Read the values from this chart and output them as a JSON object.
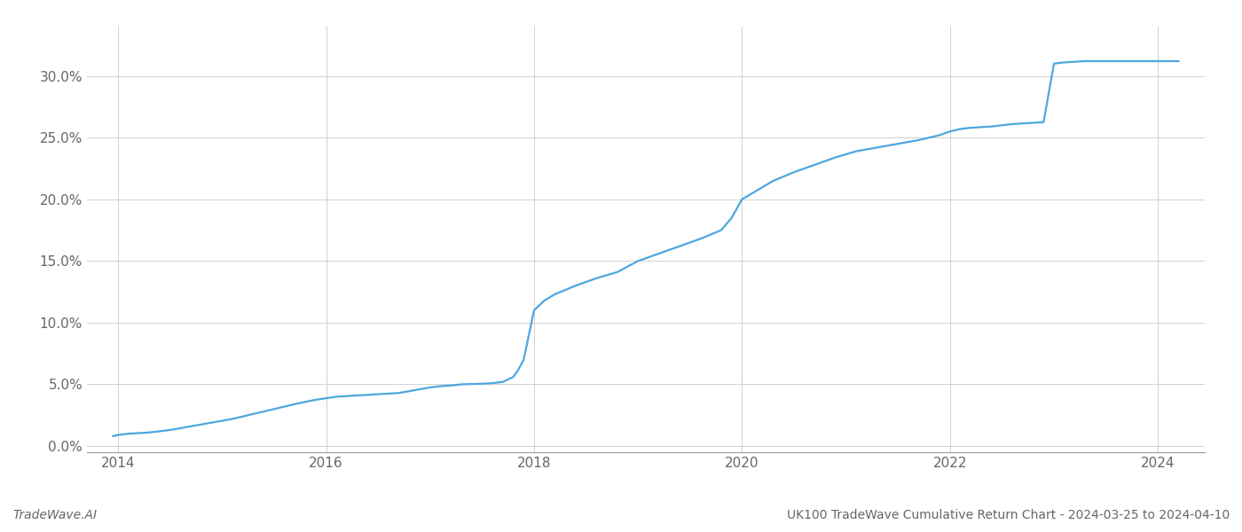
{
  "x_values": [
    2013.95,
    2014.0,
    2014.1,
    2014.2,
    2014.3,
    2014.5,
    2014.7,
    2014.9,
    2015.1,
    2015.3,
    2015.5,
    2015.7,
    2015.9,
    2016.1,
    2016.3,
    2016.5,
    2016.7,
    2016.9,
    2017.0,
    2017.1,
    2017.2,
    2017.3,
    2017.5,
    2017.6,
    2017.7,
    2017.8,
    2017.85,
    2017.9,
    2018.0,
    2018.1,
    2018.2,
    2018.4,
    2018.6,
    2018.8,
    2019.0,
    2019.2,
    2019.4,
    2019.6,
    2019.8,
    2019.9,
    2020.0,
    2020.1,
    2020.2,
    2020.3,
    2020.5,
    2020.7,
    2020.9,
    2021.1,
    2021.3,
    2021.5,
    2021.7,
    2021.9,
    2022.0,
    2022.1,
    2022.2,
    2022.3,
    2022.4,
    2022.5,
    2022.6,
    2022.7,
    2022.8,
    2022.9,
    2023.0,
    2023.1,
    2023.3,
    2023.5,
    2023.7,
    2023.9,
    2024.0,
    2024.1,
    2024.2
  ],
  "y_values": [
    0.8,
    0.9,
    1.0,
    1.05,
    1.1,
    1.3,
    1.6,
    1.9,
    2.2,
    2.6,
    3.0,
    3.4,
    3.75,
    4.0,
    4.1,
    4.2,
    4.3,
    4.6,
    4.75,
    4.85,
    4.9,
    5.0,
    5.05,
    5.1,
    5.2,
    5.6,
    6.2,
    7.0,
    11.0,
    11.8,
    12.3,
    13.0,
    13.6,
    14.1,
    15.0,
    15.6,
    16.2,
    16.8,
    17.5,
    18.5,
    20.0,
    20.5,
    21.0,
    21.5,
    22.2,
    22.8,
    23.4,
    23.9,
    24.2,
    24.5,
    24.8,
    25.2,
    25.5,
    25.7,
    25.8,
    25.85,
    25.9,
    26.0,
    26.1,
    26.15,
    26.2,
    26.25,
    31.0,
    31.1,
    31.2,
    31.2,
    31.2,
    31.2,
    31.2,
    31.2,
    31.2
  ],
  "line_color": "#4da6e0",
  "background_color": "#ffffff",
  "grid_color": "#d0d0d0",
  "title_text": "UK100 TradeWave Cumulative Return Chart - 2024-03-25 to 2024-04-10",
  "footer_left": "TradeWave.AI",
  "ytick_labels": [
    "0.0%",
    "5.0%",
    "10.0%",
    "15.0%",
    "20.0%",
    "25.0%",
    "30.0%"
  ],
  "ytick_values": [
    0,
    5,
    10,
    15,
    20,
    25,
    30
  ],
  "xtick_values": [
    2014,
    2016,
    2018,
    2020,
    2022,
    2024
  ],
  "xlim": [
    2013.7,
    2024.45
  ],
  "ylim": [
    -0.5,
    34
  ],
  "line_width": 1.6,
  "spine_color": "#999999",
  "footer_fontsize": 10,
  "axis_fontsize": 11,
  "label_color": "#666666"
}
